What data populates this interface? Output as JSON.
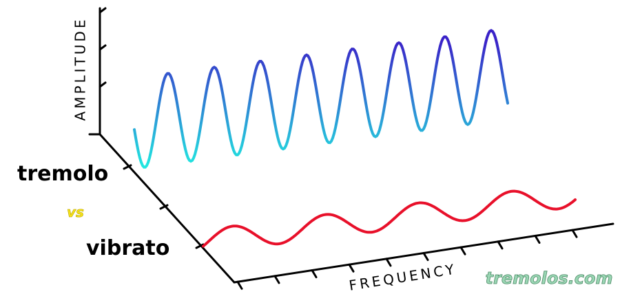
{
  "axes": {
    "y_label": "AMPLITUDE",
    "x_label": "FREQUENCY"
  },
  "labels": {
    "top": "tremolo",
    "middle": "vs",
    "bottom": "vibrato"
  },
  "watermark": "tremolos.com"
}
